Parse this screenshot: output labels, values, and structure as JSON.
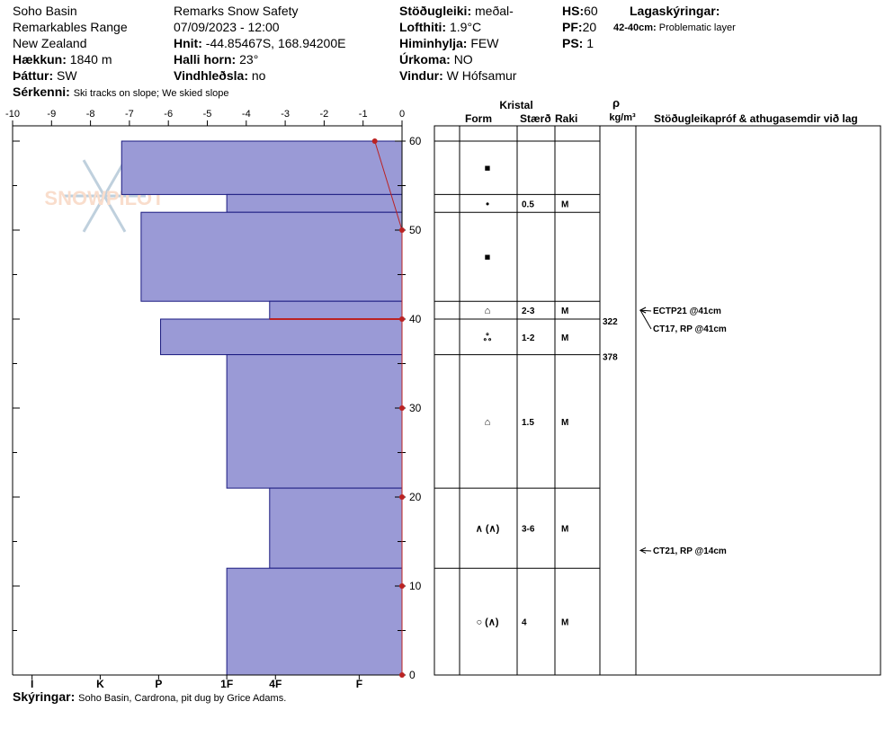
{
  "header": {
    "site": "Soho Basin",
    "range": "Remarkables Range",
    "country": "New Zealand",
    "elevation_label": "Hækkun:",
    "elevation": "1840 m",
    "aspect_label": "Þáttur:",
    "aspect": "SW",
    "features_label": "Sérkenni:",
    "features": "Ski tracks on slope; We skied slope",
    "observer": "Remarks Snow Safety",
    "datetime": "07/09/2023 - 12:00",
    "coords_label": "Hnit:",
    "coords": "-44.85467S, 168.94200E",
    "slope_label": "Halli horn:",
    "slope": "23°",
    "wind_loading_label": "Vindhleðsla:",
    "wind_loading": "no",
    "stability_label": "Stöðugleiki:",
    "stability": "meðal-",
    "air_temp_label": "Lofthiti:",
    "air_temp": "1.9°C",
    "sky_label": "Himinhylja:",
    "sky": "FEW",
    "precip_label": "Úrkoma:",
    "precip": "NO",
    "wind_label": "Vindur:",
    "wind": "W Hófsamur",
    "hs_label": "HS:",
    "hs": "60",
    "pf_label": "PF:",
    "pf": "20",
    "ps_label": "PS:",
    "ps": "1",
    "layer_notes_label": "Lagaskýringar:",
    "layer_note_range": "42-40cm:",
    "layer_note_text": "Problematic layer",
    "comments_label": "Skýringar:",
    "comments": "Soho Basin, Cardrona, pit dug by Grice Adams."
  },
  "watermark": "SNOWPILOT",
  "table_headers": {
    "crystal": "Kristal",
    "form": "Form",
    "size": "Stærð",
    "moisture": "Raki",
    "rho": "ρ",
    "density_unit": "kg/m³",
    "tests": "Stöðugleikapróf & athugasemdir við lag"
  },
  "chart_data": {
    "type": "snow_profile",
    "height_axis": {
      "min": 0,
      "max": 60,
      "ticks": [
        0,
        10,
        20,
        30,
        40,
        50,
        60
      ]
    },
    "temp_axis": {
      "min": -10,
      "max": 0,
      "ticks": [
        -10,
        -9,
        -8,
        -7,
        -6,
        -5,
        -4,
        -3,
        -2,
        -1,
        0
      ]
    },
    "hardness_ticks": [
      {
        "label": "I",
        "value": 9.5
      },
      {
        "label": "K",
        "value": 7.75
      },
      {
        "label": "P",
        "value": 6.25
      },
      {
        "label": "1F",
        "value": 4.5
      },
      {
        "label": "4F",
        "value": 3.25
      },
      {
        "label": "F",
        "value": 1.1
      }
    ],
    "hardness_layers": [
      {
        "top": 60,
        "bottom": 54,
        "hardness": 7.2
      },
      {
        "top": 54,
        "bottom": 52,
        "hardness": 4.5
      },
      {
        "top": 52,
        "bottom": 42,
        "hardness": 6.7
      },
      {
        "top": 42,
        "bottom": 40,
        "hardness": 3.4
      },
      {
        "top": 40,
        "bottom": 36,
        "hardness": 6.2
      },
      {
        "top": 36,
        "bottom": 21,
        "hardness": 4.5
      },
      {
        "top": 21,
        "bottom": 12,
        "hardness": 3.4
      },
      {
        "top": 12,
        "bottom": 0,
        "hardness": 4.5
      }
    ],
    "temperature_profile": [
      {
        "height": 60,
        "temp": -0.7
      },
      {
        "height": 50,
        "temp": 0
      },
      {
        "height": 40,
        "temp": 0
      },
      {
        "height": 30,
        "temp": 0
      },
      {
        "height": 20,
        "temp": 0
      },
      {
        "height": 10,
        "temp": 0
      },
      {
        "height": 0,
        "temp": 0
      }
    ],
    "problem_layer": {
      "height": 40
    },
    "layers": [
      {
        "top": 60,
        "bottom": 54,
        "form": "■",
        "size": "",
        "moisture": ""
      },
      {
        "top": 54,
        "bottom": 52,
        "form": "•",
        "size": "0.5",
        "moisture": "M"
      },
      {
        "top": 52,
        "bottom": 42,
        "form": "■",
        "size": "",
        "moisture": ""
      },
      {
        "top": 42,
        "bottom": 40,
        "form": "⌂",
        "size": "2-3",
        "moisture": "M"
      },
      {
        "top": 40,
        "bottom": 36,
        "form": "ஃ",
        "size": "1-2",
        "moisture": "M"
      },
      {
        "top": 36,
        "bottom": 21,
        "form": "⌂",
        "size": "1.5",
        "moisture": "M"
      },
      {
        "top": 21,
        "bottom": 12,
        "form": "∧ (∧)",
        "size": "3-6",
        "moisture": "M"
      },
      {
        "top": 12,
        "bottom": 0,
        "form": "○ (∧)",
        "size": "4",
        "moisture": "M"
      }
    ],
    "densities": [
      {
        "height": 39,
        "value": "322"
      },
      {
        "height": 35,
        "value": "378"
      }
    ],
    "tests": [
      {
        "height": 41,
        "label": "ECTP21 @41cm"
      },
      {
        "height": 41,
        "label": "CT17, RP @41cm"
      },
      {
        "height": 14,
        "label": "CT21, RP @14cm"
      }
    ]
  }
}
